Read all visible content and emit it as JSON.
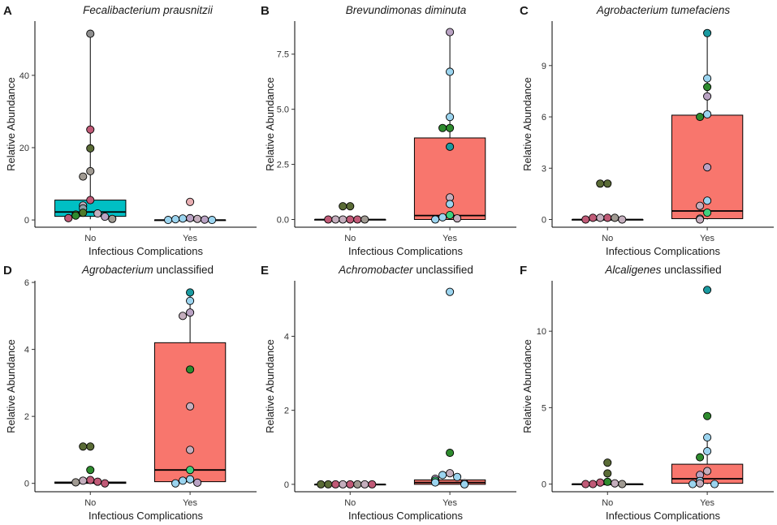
{
  "chart_data": [
    {
      "type": "boxplot-jitter",
      "panel": "A",
      "title_italic": "Fecalibacterium prausnitzii",
      "title_rest": "",
      "xlabel": "Infectious Complications",
      "ylabel": "Relative Abundance",
      "categories": [
        "No",
        "Yes"
      ],
      "ylim": [
        -2,
        55
      ],
      "yticks": [
        0,
        20,
        40
      ],
      "box_colors": [
        "#00BFC4",
        "#00BFC4"
      ],
      "boxes": [
        {
          "q1": 1.0,
          "median": 2.2,
          "q3": 5.5,
          "whisker_low": 0.2,
          "whisker_high": 51.5
        },
        {
          "q1": 0.0,
          "median": 0.0,
          "q3": 0.0,
          "whisker_low": 0.0,
          "whisker_high": 0.0
        }
      ],
      "points": [
        [
          {
            "v": 51.5,
            "c": "#8e8e8e"
          },
          {
            "v": 25.0,
            "c": "#c05a77"
          },
          {
            "v": 19.8,
            "c": "#5a6b36"
          },
          {
            "v": 13.5,
            "c": "#a09a92"
          },
          {
            "v": 12.0,
            "c": "#a09a92"
          },
          {
            "v": 5.5,
            "c": "#c05a77"
          },
          {
            "v": 4.0,
            "c": "#c4aebd"
          },
          {
            "v": 3.2,
            "c": "#8aa0a8"
          },
          {
            "v": 2.0,
            "c": "#4e7a2a"
          },
          {
            "v": 1.8,
            "c": "#c4aebd"
          },
          {
            "v": 1.5,
            "c": "#6e7a3f"
          },
          {
            "v": 1.2,
            "c": "#2e8b2e"
          },
          {
            "v": 0.9,
            "c": "#b9a2c3"
          },
          {
            "v": 0.5,
            "c": "#c05a77"
          },
          {
            "v": 0.3,
            "c": "#a09a92"
          }
        ],
        [
          {
            "v": 5.0,
            "c": "#e8aeb2"
          },
          {
            "v": 0.5,
            "c": "#b9a2c3"
          },
          {
            "v": 0.4,
            "c": "#9bd4ef"
          },
          {
            "v": 0.3,
            "c": "#c4aebd"
          },
          {
            "v": 0.2,
            "c": "#9bd4ef"
          },
          {
            "v": 0.1,
            "c": "#b9a2c3"
          },
          {
            "v": 0.0,
            "c": "#9bd4ef"
          },
          {
            "v": 0.0,
            "c": "#9bd4ef"
          }
        ]
      ]
    },
    {
      "type": "boxplot-jitter",
      "panel": "B",
      "title_italic": "Brevundimonas diminuta",
      "title_rest": "",
      "xlabel": "Infectious Complications",
      "ylabel": "Relative Abundance",
      "categories": [
        "No",
        "Yes"
      ],
      "ylim": [
        -0.35,
        9.0
      ],
      "yticks": [
        0.0,
        2.5,
        5.0,
        7.5
      ],
      "tick_format": 1,
      "box_colors": [
        "#F8766D",
        "#F8766D"
      ],
      "boxes": [
        {
          "q1": 0.0,
          "median": 0.0,
          "q3": 0.0,
          "whisker_low": 0.0,
          "whisker_high": 0.0
        },
        {
          "q1": 0.0,
          "median": 0.18,
          "q3": 3.7,
          "whisker_low": 0.0,
          "whisker_high": 8.5
        }
      ],
      "points": [
        [
          {
            "v": 0.6,
            "c": "#5a6b36"
          },
          {
            "v": 0.6,
            "c": "#5a6b36"
          },
          {
            "v": 0.0,
            "c": "#c05a77"
          },
          {
            "v": 0.0,
            "c": "#c4aebd"
          },
          {
            "v": 0.0,
            "c": "#c05a77"
          },
          {
            "v": 0.0,
            "c": "#c4aebd"
          },
          {
            "v": 0.0,
            "c": "#a09a92"
          },
          {
            "v": 0.0,
            "c": "#c05a77"
          }
        ],
        [
          {
            "v": 8.5,
            "c": "#b9a2c3"
          },
          {
            "v": 6.7,
            "c": "#9bd4ef"
          },
          {
            "v": 4.65,
            "c": "#9bd4ef"
          },
          {
            "v": 4.15,
            "c": "#2e8b2e"
          },
          {
            "v": 4.15,
            "c": "#2e8b2e"
          },
          {
            "v": 3.3,
            "c": "#1a9aa0"
          },
          {
            "v": 1.0,
            "c": "#c4aebd"
          },
          {
            "v": 0.7,
            "c": "#9bd4ef"
          },
          {
            "v": 0.2,
            "c": "#3fd07e"
          },
          {
            "v": 0.1,
            "c": "#9bd4ef"
          },
          {
            "v": 0.05,
            "c": "#c4aebd"
          },
          {
            "v": 0.0,
            "c": "#9bd4ef"
          }
        ]
      ]
    },
    {
      "type": "boxplot-jitter",
      "panel": "C",
      "title_italic": "Agrobacterium tumefaciens",
      "title_rest": "",
      "xlabel": "Infectious Complications",
      "ylabel": "Relative Abundance",
      "categories": [
        "No",
        "Yes"
      ],
      "ylim": [
        -0.45,
        11.6
      ],
      "yticks": [
        0,
        3,
        6,
        9
      ],
      "box_colors": [
        "#F8766D",
        "#F8766D"
      ],
      "boxes": [
        {
          "q1": 0.0,
          "median": 0.0,
          "q3": 0.0,
          "whisker_low": 0.0,
          "whisker_high": 0.0
        },
        {
          "q1": 0.05,
          "median": 0.5,
          "q3": 6.1,
          "whisker_low": 0.0,
          "whisker_high": 10.9
        }
      ],
      "points": [
        [
          {
            "v": 2.1,
            "c": "#5a6b36"
          },
          {
            "v": 2.1,
            "c": "#5a6b36"
          },
          {
            "v": 0.1,
            "c": "#c05a77"
          },
          {
            "v": 0.1,
            "c": "#c4aebd"
          },
          {
            "v": 0.1,
            "c": "#a09a92"
          },
          {
            "v": 0.1,
            "c": "#c05a77"
          },
          {
            "v": 0.0,
            "c": "#c4aebd"
          },
          {
            "v": 0.0,
            "c": "#c05a77"
          }
        ],
        [
          {
            "v": 10.9,
            "c": "#1a9aa0"
          },
          {
            "v": 8.25,
            "c": "#9bd4ef"
          },
          {
            "v": 7.75,
            "c": "#2e8b2e"
          },
          {
            "v": 7.2,
            "c": "#b9a2c3"
          },
          {
            "v": 6.15,
            "c": "#9bd4ef"
          },
          {
            "v": 6.0,
            "c": "#2e8b2e"
          },
          {
            "v": 3.05,
            "c": "#b9a2c3"
          },
          {
            "v": 1.1,
            "c": "#9bd4ef"
          },
          {
            "v": 0.8,
            "c": "#c4aebd"
          },
          {
            "v": 0.4,
            "c": "#3fd07e"
          },
          {
            "v": 0.05,
            "c": "#9bd4ef"
          },
          {
            "v": 0.0,
            "c": "#c4aebd"
          }
        ]
      ]
    },
    {
      "type": "boxplot-jitter",
      "panel": "D",
      "title_italic": "Agrobacterium",
      "title_rest": " unclassified",
      "xlabel": "Infectious Complications",
      "ylabel": "Relative Abundance",
      "categories": [
        "No",
        "Yes"
      ],
      "ylim": [
        -0.25,
        6.05
      ],
      "yticks": [
        0,
        2,
        4,
        6
      ],
      "box_colors": [
        "#00BFC4",
        "#F8766D"
      ],
      "boxes": [
        {
          "q1": 0.0,
          "median": 0.02,
          "q3": 0.04,
          "whisker_low": 0.0,
          "whisker_high": 0.06
        },
        {
          "q1": 0.05,
          "median": 0.4,
          "q3": 4.2,
          "whisker_low": 0.0,
          "whisker_high": 5.7
        }
      ],
      "points": [
        [
          {
            "v": 1.1,
            "c": "#5a6b36"
          },
          {
            "v": 1.1,
            "c": "#5a6b36"
          },
          {
            "v": 0.4,
            "c": "#2e8b2e"
          },
          {
            "v": 0.1,
            "c": "#c05a77"
          },
          {
            "v": 0.08,
            "c": "#c4aebd"
          },
          {
            "v": 0.05,
            "c": "#c05a77"
          },
          {
            "v": 0.03,
            "c": "#a09a92"
          },
          {
            "v": 0.0,
            "c": "#c05a77"
          }
        ],
        [
          {
            "v": 5.7,
            "c": "#1a9aa0"
          },
          {
            "v": 5.45,
            "c": "#9bd4ef"
          },
          {
            "v": 5.1,
            "c": "#b9a2c3"
          },
          {
            "v": 5.0,
            "c": "#c4aebd"
          },
          {
            "v": 3.4,
            "c": "#2e8b2e"
          },
          {
            "v": 2.3,
            "c": "#c4aebd"
          },
          {
            "v": 1.0,
            "c": "#c4aebd"
          },
          {
            "v": 0.4,
            "c": "#3fd07e"
          },
          {
            "v": 0.12,
            "c": "#9bd4ef"
          },
          {
            "v": 0.08,
            "c": "#9bd4ef"
          },
          {
            "v": 0.02,
            "c": "#b9a2c3"
          },
          {
            "v": 0.0,
            "c": "#9bd4ef"
          }
        ]
      ]
    },
    {
      "type": "boxplot-jitter",
      "panel": "E",
      "title_italic": "Achromobacter",
      "title_rest": " unclassified",
      "xlabel": "Infectious Complications",
      "ylabel": "Relative Abundance",
      "categories": [
        "No",
        "Yes"
      ],
      "ylim": [
        -0.2,
        5.5
      ],
      "yticks": [
        0,
        2,
        4
      ],
      "box_colors": [
        "#F8766D",
        "#F8766D"
      ],
      "boxes": [
        {
          "q1": 0.0,
          "median": 0.0,
          "q3": 0.0,
          "whisker_low": 0.0,
          "whisker_high": 0.0
        },
        {
          "q1": 0.0,
          "median": 0.05,
          "q3": 0.12,
          "whisker_low": 0.0,
          "whisker_high": 0.12
        }
      ],
      "points": [
        [
          {
            "v": 0.0,
            "c": "#c05a77"
          },
          {
            "v": 0.0,
            "c": "#c4aebd"
          },
          {
            "v": 0.0,
            "c": "#a09a92"
          },
          {
            "v": 0.0,
            "c": "#c05a77"
          },
          {
            "v": 0.0,
            "c": "#c4aebd"
          },
          {
            "v": 0.0,
            "c": "#5a6b36"
          },
          {
            "v": 0.0,
            "c": "#c05a77"
          },
          {
            "v": 0.0,
            "c": "#5a6b36"
          }
        ],
        [
          {
            "v": 5.2,
            "c": "#9bd4ef"
          },
          {
            "v": 0.85,
            "c": "#2e8b2e"
          },
          {
            "v": 0.3,
            "c": "#c4aebd"
          },
          {
            "v": 0.25,
            "c": "#9bd4ef"
          },
          {
            "v": 0.2,
            "c": "#9bd4ef"
          },
          {
            "v": 0.15,
            "c": "#b9a2c3"
          },
          {
            "v": 0.1,
            "c": "#3fd07e"
          },
          {
            "v": 0.05,
            "c": "#9bd4ef"
          },
          {
            "v": 0.03,
            "c": "#c4aebd"
          },
          {
            "v": 0.0,
            "c": "#9bd4ef"
          }
        ]
      ]
    },
    {
      "type": "boxplot-jitter",
      "panel": "F",
      "title_italic": "Alcaligenes",
      "title_rest": " unclassified",
      "xlabel": "Infectious Complications",
      "ylabel": "Relative Abundance",
      "categories": [
        "No",
        "Yes"
      ],
      "ylim": [
        -0.5,
        13.3
      ],
      "yticks": [
        0,
        5,
        10
      ],
      "box_colors": [
        "#F8766D",
        "#F8766D"
      ],
      "boxes": [
        {
          "q1": 0.0,
          "median": 0.0,
          "q3": 0.0,
          "whisker_low": 0.0,
          "whisker_high": 0.0
        },
        {
          "q1": 0.05,
          "median": 0.35,
          "q3": 1.3,
          "whisker_low": 0.0,
          "whisker_high": 3.1
        }
      ],
      "points": [
        [
          {
            "v": 1.4,
            "c": "#5a6b36"
          },
          {
            "v": 0.7,
            "c": "#5a6b36"
          },
          {
            "v": 0.15,
            "c": "#2e8b2e"
          },
          {
            "v": 0.1,
            "c": "#c05a77"
          },
          {
            "v": 0.05,
            "c": "#c4aebd"
          },
          {
            "v": 0.0,
            "c": "#c05a77"
          },
          {
            "v": 0.0,
            "c": "#a09a92"
          },
          {
            "v": 0.0,
            "c": "#c05a77"
          }
        ],
        [
          {
            "v": 12.7,
            "c": "#1a9aa0"
          },
          {
            "v": 4.45,
            "c": "#2e8b2e"
          },
          {
            "v": 3.05,
            "c": "#9bd4ef"
          },
          {
            "v": 2.15,
            "c": "#9bd4ef"
          },
          {
            "v": 1.75,
            "c": "#2e8b2e"
          },
          {
            "v": 0.85,
            "c": "#c4aebd"
          },
          {
            "v": 0.6,
            "c": "#b9a2c3"
          },
          {
            "v": 0.2,
            "c": "#9bd4ef"
          },
          {
            "v": 0.05,
            "c": "#c4aebd"
          },
          {
            "v": 0.0,
            "c": "#9bd4ef"
          },
          {
            "v": 0.0,
            "c": "#9bd4ef"
          }
        ]
      ]
    }
  ]
}
